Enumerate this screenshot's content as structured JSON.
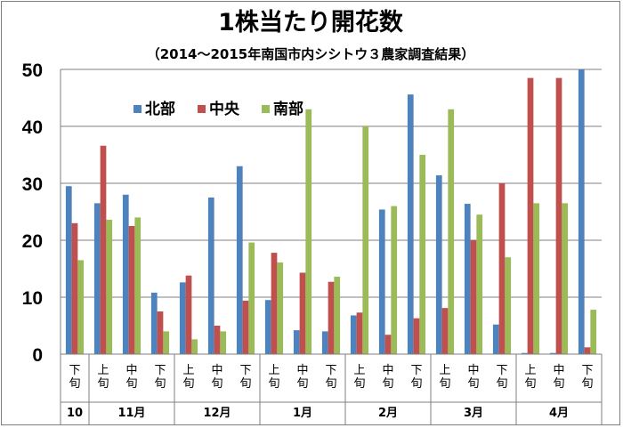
{
  "chart_data": {
    "type": "bar",
    "title": "1株当たり開花数",
    "subtitle": "（2014～2015年南国市内シシトウ３農家調査結果）",
    "categories": [
      "下旬",
      "上旬",
      "中旬",
      "下旬",
      "上旬",
      "中旬",
      "下旬",
      "上旬",
      "中旬",
      "下旬",
      "上旬",
      "中旬",
      "下旬",
      "上旬",
      "中旬",
      "下旬",
      "上旬",
      "中旬",
      "下旬"
    ],
    "category_display": [
      "下\n旬",
      "上\n旬",
      "中\n旬",
      "下\n旬",
      "上\n旬",
      "中\n旬",
      "下\n旬",
      "上\n旬",
      "中\n旬",
      "下\n旬",
      "上\n旬",
      "中\n旬",
      "下\n旬",
      "上\n旬",
      "中\n旬",
      "下\n旬",
      "上\n旬",
      "中\n旬",
      "下\n旬"
    ],
    "groups": [
      {
        "label": "10",
        "count": 1
      },
      {
        "label": "11月",
        "count": 3
      },
      {
        "label": "12月",
        "count": 3
      },
      {
        "label": "1月",
        "count": 3
      },
      {
        "label": "2月",
        "count": 3
      },
      {
        "label": "3月",
        "count": 3
      },
      {
        "label": "4月",
        "count": 3
      }
    ],
    "series": [
      {
        "name": "北部",
        "color": "#4f81bd",
        "values": [
          29.5,
          26.5,
          28,
          10.8,
          12.6,
          27.5,
          33,
          9.5,
          4.2,
          4,
          6.8,
          25.4,
          45.6,
          31.4,
          26.4,
          5.2,
          0.2,
          0.2,
          50
        ]
      },
      {
        "name": "中央",
        "color": "#c0504d",
        "values": [
          23,
          36.6,
          22.5,
          7.5,
          13.8,
          5,
          9.4,
          17.8,
          14.3,
          12.7,
          7.3,
          3.4,
          6.3,
          8.1,
          20,
          30,
          48.5,
          48.5,
          1.2
        ]
      },
      {
        "name": "南部",
        "color": "#9bbb59",
        "values": [
          16.5,
          23.6,
          24,
          4,
          2.6,
          4,
          19.6,
          16.1,
          43,
          13.6,
          40,
          26,
          35,
          43,
          24.5,
          17,
          26.5,
          26.5,
          7.8
        ]
      }
    ],
    "yticks": [
      "0",
      "10",
      "20",
      "30",
      "40",
      "50"
    ],
    "ylim": [
      0,
      50
    ],
    "xlabel": "",
    "ylabel": "",
    "grid": true,
    "legend_position": "top-left"
  }
}
